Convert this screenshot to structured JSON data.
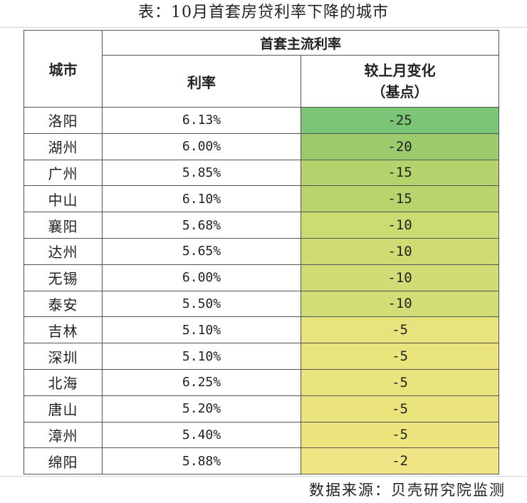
{
  "title": "表：10月首套房贷利率下降的城市",
  "header": {
    "city": "城市",
    "group": "首套主流利率",
    "rate": "利率",
    "change_line1": "较上月变化",
    "change_line2": "（基点）"
  },
  "rows": [
    {
      "city": "洛阳",
      "rate": "6.13%",
      "change": "-25"
    },
    {
      "city": "湖州",
      "rate": "6.00%",
      "change": "-20"
    },
    {
      "city": "广州",
      "rate": "5.85%",
      "change": "-15"
    },
    {
      "city": "中山",
      "rate": "6.10%",
      "change": "-15"
    },
    {
      "city": "襄阳",
      "rate": "5.68%",
      "change": "-10"
    },
    {
      "city": "达州",
      "rate": "5.65%",
      "change": "-10"
    },
    {
      "city": "无锡",
      "rate": "6.00%",
      "change": "-10"
    },
    {
      "city": "泰安",
      "rate": "5.50%",
      "change": "-10"
    },
    {
      "city": "吉林",
      "rate": "5.10%",
      "change": "-5"
    },
    {
      "city": "深圳",
      "rate": "5.10%",
      "change": "-5"
    },
    {
      "city": "北海",
      "rate": "6.25%",
      "change": "-5"
    },
    {
      "city": "唐山",
      "rate": "5.20%",
      "change": "-5"
    },
    {
      "city": "漳州",
      "rate": "5.40%",
      "change": "-5"
    },
    {
      "city": "绵阳",
      "rate": "5.88%",
      "change": "-2"
    }
  ],
  "heatmap_colors": [
    "#7cc576",
    "#9ccb6e",
    "#b5d36c",
    "#b8d46c",
    "#cddb73",
    "#cfdc74",
    "#d1dc75",
    "#d3dd75",
    "#e8e37c",
    "#e9e47c",
    "#eae47d",
    "#ebe47d",
    "#ece57e",
    "#f0e584"
  ],
  "source": "数据来源：贝壳研究院监测"
}
